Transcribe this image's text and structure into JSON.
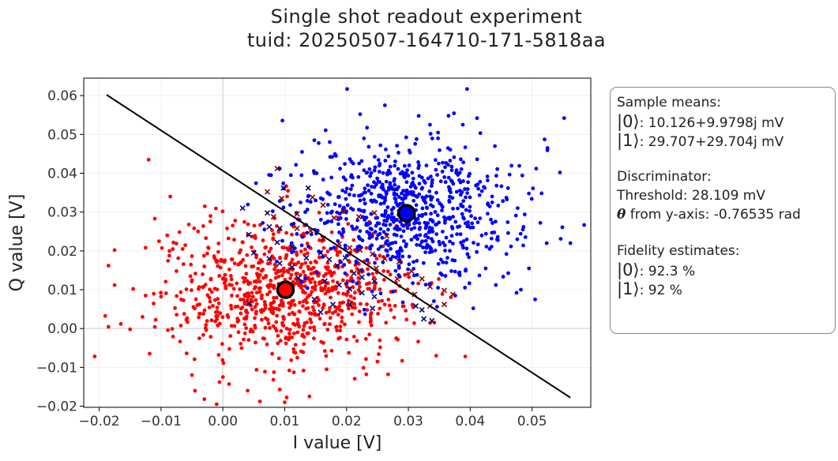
{
  "title": {
    "line1": "Single shot readout experiment",
    "line2": "tuid: 20250507-164710-171-5818aa"
  },
  "colors": {
    "state0": "#ff0000",
    "state1": "#0000ff",
    "state0_misclassified": "#8b0000",
    "state1_misclassified": "#000080",
    "boundary": "#000000"
  },
  "info": {
    "means_header": "Sample means:",
    "mean0_label": "|0⟩",
    "mean0_value": ": 10.126+9.9798j mV",
    "mean1_label": "|1⟩",
    "mean1_value": ": 29.707+29.704j mV",
    "disc_header": "Discriminator:",
    "threshold": "Threshold: 28.109 mV",
    "theta_symbol": "θ",
    "theta_text": " from y-axis: -0.76535 rad",
    "fid_header": "Fidelity estimates:",
    "fid0_label": "|0⟩",
    "fid0_value": ": 92.3 %",
    "fid1_label": "|1⟩",
    "fid1_value": ": 92 %"
  },
  "chart_data": {
    "type": "scatter",
    "title": "Single shot readout experiment\ntuid: 20250507-164710-171-5818aa",
    "xlabel": "I value [V]",
    "ylabel": "Q value [V]",
    "xlim": [
      -0.0225,
      0.0595
    ],
    "ylim": [
      -0.0203,
      0.0645
    ],
    "xticks": [
      -0.02,
      -0.01,
      0.0,
      0.01,
      0.02,
      0.03,
      0.04,
      0.05
    ],
    "xtick_labels": [
      "−0.02",
      "−0.01",
      "0.00",
      "0.01",
      "0.02",
      "0.03",
      "0.04",
      "0.05"
    ],
    "yticks": [
      -0.02,
      -0.01,
      0.0,
      0.01,
      0.02,
      0.03,
      0.04,
      0.05,
      0.06
    ],
    "ytick_labels": [
      "−0.02",
      "−0.01",
      "0.00",
      "0.01",
      "0.02",
      "0.03",
      "0.04",
      "0.05",
      "0.06"
    ],
    "grid": true,
    "series": [
      {
        "marker": "dot",
        "color": "#ff0000",
        "points": [
          [
            -0.012,
            0.0435
          ],
          [
            -0.0175,
            0.0202
          ],
          [
            -0.0185,
            0.0162
          ],
          [
            -0.0165,
            0.0012
          ],
          [
            -0.015,
            -0.0002
          ],
          [
            -0.013,
            0.003
          ],
          [
            -0.0125,
            0.0085
          ],
          [
            -0.011,
            0.0283
          ],
          [
            -0.009,
            0.024
          ],
          [
            -0.0085,
            0.034
          ],
          [
            -0.0075,
            0.0148
          ],
          [
            -0.0065,
            0.0205
          ],
          [
            -0.005,
            -0.012
          ],
          [
            -0.0045,
            -0.016
          ],
          [
            -0.0055,
            0.0268
          ],
          [
            -0.004,
            0.025
          ],
          [
            -0.003,
            0.016
          ],
          [
            -0.002,
            0.029
          ],
          [
            -0.003,
            -0.0182
          ],
          [
            -0.001,
            -0.0195
          ],
          [
            0.0,
            -0.0125
          ],
          [
            0.001,
            -0.0143
          ],
          [
            0.002,
            0.0278
          ],
          [
            0.004,
            -0.016
          ],
          [
            0.006,
            -0.0188
          ],
          [
            0.0075,
            0.0198
          ],
          [
            0.0092,
            -0.0157
          ],
          [
            0.01,
            -0.019
          ],
          [
            0.014,
            -0.0175
          ],
          [
            0.0232,
            -0.0118
          ],
          [
            0.025,
            -0.0085
          ],
          [
            0.029,
            -0.0083
          ],
          [
            0.0345,
            -0.007
          ],
          [
            0.0392,
            -0.0072
          ],
          [
            0.026,
            0.0148
          ],
          [
            0.028,
            0.0118
          ],
          [
            -0.0145,
            0.0102
          ],
          [
            -0.0175,
            0.0112
          ]
        ],
        "cluster": {
          "center": [
            0.0102,
            0.0095
          ],
          "sd": [
            0.0095,
            0.0085
          ],
          "count": 820,
          "seed": 11
        }
      },
      {
        "marker": "dot",
        "color": "#0000ff",
        "points": [
          [
            0.0201,
            0.0617
          ],
          [
            0.0395,
            0.0617
          ],
          [
            0.0552,
            0.0542
          ],
          [
            0.0562,
            0.022
          ],
          [
            0.0545,
            0.0402
          ],
          [
            0.0525,
            0.0465
          ],
          [
            0.0495,
            0.0155
          ],
          [
            0.0482,
            0.01
          ],
          [
            0.0475,
            0.0092
          ],
          [
            0.0505,
            0.0075
          ],
          [
            0.0405,
            0.0052
          ],
          [
            0.0425,
            0.0155
          ],
          [
            0.044,
            0.047
          ],
          [
            0.0078,
            0.0395
          ],
          [
            0.0092,
            0.0412
          ],
          [
            0.011,
            0.0395
          ],
          [
            0.0128,
            0.0455
          ],
          [
            0.0148,
            0.0485
          ],
          [
            0.0262,
            0.0575
          ],
          [
            0.0222,
            0.0552
          ],
          [
            0.0335,
            0.0525
          ],
          [
            0.0365,
            0.0548
          ],
          [
            0.015,
            0.033
          ],
          [
            0.0098,
            0.0312
          ],
          [
            0.0352,
            0.0142
          ],
          [
            0.0375,
            0.0175
          ]
        ],
        "cluster": {
          "center": [
            0.0297,
            0.0297
          ],
          "sd": [
            0.009,
            0.0085
          ],
          "count": 760,
          "seed": 23
        }
      },
      {
        "marker": "x",
        "color": "#8b0000",
        "points": [
          [
            0.0088,
            0.0412
          ],
          [
            0.0072,
            0.0352
          ],
          [
            0.0095,
            0.0335
          ],
          [
            0.012,
            0.0295
          ],
          [
            0.0145,
            0.0338
          ],
          [
            0.0162,
            0.0318
          ],
          [
            0.018,
            0.0285
          ],
          [
            0.0195,
            0.0303
          ],
          [
            0.022,
            0.0288
          ],
          [
            0.0245,
            0.0298
          ],
          [
            0.012,
            0.0258
          ],
          [
            0.0142,
            0.0252
          ],
          [
            0.0162,
            0.0232
          ],
          [
            0.0188,
            0.0218
          ],
          [
            0.0205,
            0.0208
          ],
          [
            0.0222,
            0.0202
          ],
          [
            0.0242,
            0.0192
          ],
          [
            0.0262,
            0.018
          ],
          [
            0.0285,
            0.0172
          ],
          [
            0.0305,
            0.0148
          ],
          [
            0.0322,
            0.0128
          ],
          [
            0.0335,
            0.0108
          ],
          [
            0.0358,
            0.0098
          ],
          [
            0.0372,
            0.0088
          ],
          [
            0.0222,
            0.0148
          ],
          [
            0.0248,
            0.0155
          ],
          [
            0.0282,
            0.0128
          ],
          [
            0.031,
            0.0088
          ],
          [
            0.0335,
            0.0058
          ],
          [
            0.0358,
            0.0062
          ],
          [
            0.0082,
            0.0288
          ],
          [
            0.0265,
            0.0238
          ]
        ],
        "cluster": null
      },
      {
        "marker": "x",
        "color": "#000080",
        "points": [
          [
            0.0032,
            0.031
          ],
          [
            0.0072,
            0.0298
          ],
          [
            0.0075,
            0.0262
          ],
          [
            0.0092,
            0.0258
          ],
          [
            0.0042,
            0.0242
          ],
          [
            0.0088,
            0.0222
          ],
          [
            0.0112,
            0.021
          ],
          [
            0.005,
            0.0195
          ],
          [
            0.0075,
            0.018
          ],
          [
            0.0092,
            0.0168
          ],
          [
            0.0112,
            0.0158
          ],
          [
            0.0135,
            0.0182
          ],
          [
            0.0158,
            0.0195
          ],
          [
            0.0172,
            0.0178
          ],
          [
            0.0185,
            0.0162
          ],
          [
            0.0198,
            0.0182
          ],
          [
            0.0212,
            0.0142
          ],
          [
            0.0225,
            0.0132
          ],
          [
            0.0245,
            0.0122
          ],
          [
            0.0165,
            0.0122
          ],
          [
            0.0188,
            0.0112
          ],
          [
            0.0205,
            0.0102
          ],
          [
            0.0225,
            0.0092
          ],
          [
            0.0245,
            0.0082
          ],
          [
            0.0148,
            0.0075
          ],
          [
            0.0178,
            0.0062
          ],
          [
            0.0205,
            0.0062
          ],
          [
            0.0242,
            0.0052
          ],
          [
            0.0105,
            0.0088
          ],
          [
            0.0312,
            0.0058
          ],
          [
            0.0322,
            0.0048
          ],
          [
            0.0325,
            0.0025
          ],
          [
            0.0338,
            0.002
          ],
          [
            0.0042,
            0.0065
          ],
          [
            0.0158,
            0.0042
          ],
          [
            0.0122,
            0.013
          ],
          [
            0.0098,
            0.0362
          ],
          [
            0.0138,
            0.0362
          ]
        ],
        "cluster": null
      }
    ],
    "means": [
      {
        "label": "|0⟩",
        "x": 0.010126,
        "y": 0.0099798,
        "color": "#ff0000"
      },
      {
        "label": "|1⟩",
        "x": 0.029707,
        "y": 0.029704,
        "color": "#0000ff"
      }
    ],
    "decision_boundary": {
      "x": [
        -0.0188,
        0.0562
      ],
      "y": [
        0.0602,
        -0.0178
      ]
    }
  }
}
